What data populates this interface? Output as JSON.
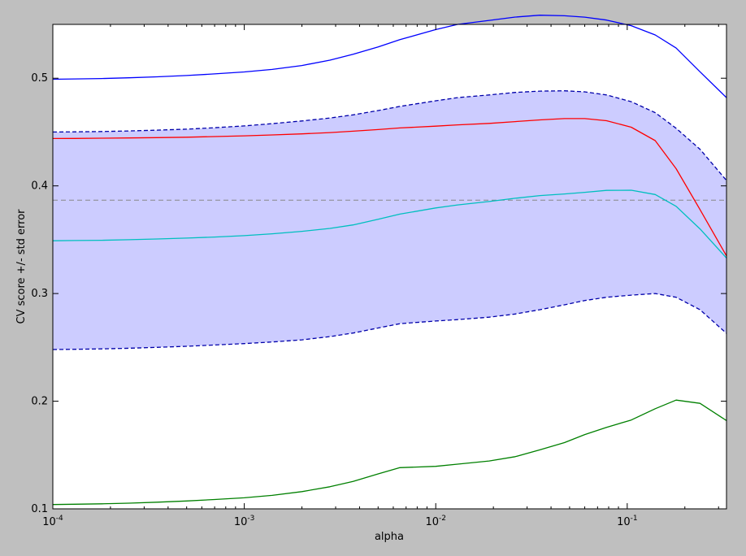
{
  "chart_data": {
    "type": "line",
    "title": "",
    "xlabel": "alpha",
    "ylabel": "CV score +/- std error",
    "xscale": "log",
    "xlim": [
      0.0001,
      0.33
    ],
    "ylim": [
      0.1,
      0.55
    ],
    "grid": false,
    "yticks": [
      {
        "value": 0.1,
        "label": "0.1"
      },
      {
        "value": 0.2,
        "label": "0.2"
      },
      {
        "value": 0.3,
        "label": "0.3"
      },
      {
        "value": 0.4,
        "label": "0.4"
      },
      {
        "value": 0.5,
        "label": "0.5"
      }
    ],
    "xticks": [
      {
        "value": 0.0001,
        "base": "10",
        "exp": "-4"
      },
      {
        "value": 0.001,
        "base": "10",
        "exp": "-3"
      },
      {
        "value": 0.01,
        "base": "10",
        "exp": "-2"
      },
      {
        "value": 0.1,
        "base": "10",
        "exp": "-1"
      }
    ],
    "alphas": [
      0.0001,
      0.00013,
      0.00018,
      0.00025,
      0.00035,
      0.0005,
      0.0007,
      0.001,
      0.0014,
      0.002,
      0.0028,
      0.0037,
      0.005,
      0.0065,
      0.01,
      0.013,
      0.019,
      0.026,
      0.035,
      0.047,
      0.06,
      0.078,
      0.105,
      0.14,
      0.18,
      0.24,
      0.33
    ],
    "series": [
      {
        "role": "fold-max",
        "color": "#0000ff",
        "style": "solid",
        "values": [
          0.499,
          0.4993,
          0.4997,
          0.5004,
          0.5013,
          0.5025,
          0.504,
          0.5058,
          0.5082,
          0.5118,
          0.5168,
          0.5222,
          0.529,
          0.5358,
          0.5452,
          0.55,
          0.5537,
          0.5568,
          0.5585,
          0.558,
          0.5567,
          0.554,
          0.5488,
          0.5402,
          0.528,
          0.506,
          0.482
        ]
      },
      {
        "role": "mean-plus-std",
        "color": "#0000aa",
        "style": "dashed",
        "values": [
          0.45,
          0.4502,
          0.4505,
          0.451,
          0.4518,
          0.4527,
          0.454,
          0.4557,
          0.4578,
          0.4603,
          0.463,
          0.466,
          0.47,
          0.4738,
          0.479,
          0.482,
          0.4845,
          0.4868,
          0.488,
          0.4883,
          0.4873,
          0.4845,
          0.4782,
          0.468,
          0.4535,
          0.434,
          0.405
        ]
      },
      {
        "role": "mean",
        "color": "#ff0000",
        "style": "solid",
        "values": [
          0.444,
          0.4441,
          0.4443,
          0.4445,
          0.4448,
          0.4452,
          0.4458,
          0.4465,
          0.4473,
          0.4483,
          0.4495,
          0.4508,
          0.4523,
          0.4538,
          0.4555,
          0.4567,
          0.458,
          0.4597,
          0.4613,
          0.4625,
          0.4625,
          0.4605,
          0.4545,
          0.442,
          0.416,
          0.378,
          0.335
        ]
      },
      {
        "role": "mean-minus-std",
        "color": "#0000aa",
        "style": "dashed",
        "values": [
          0.248,
          0.2482,
          0.2486,
          0.2492,
          0.25,
          0.251,
          0.2522,
          0.2535,
          0.255,
          0.257,
          0.26,
          0.2633,
          0.268,
          0.272,
          0.2745,
          0.2758,
          0.278,
          0.281,
          0.285,
          0.2895,
          0.2935,
          0.2965,
          0.2985,
          0.3,
          0.2965,
          0.285,
          0.263
        ]
      },
      {
        "role": "fold-mid",
        "color": "#00bfbf",
        "style": "solid",
        "values": [
          0.349,
          0.3492,
          0.3495,
          0.35,
          0.3507,
          0.3515,
          0.3525,
          0.3538,
          0.3555,
          0.3578,
          0.3605,
          0.3637,
          0.369,
          0.3738,
          0.3795,
          0.3823,
          0.3855,
          0.3885,
          0.391,
          0.3925,
          0.394,
          0.3958,
          0.396,
          0.392,
          0.381,
          0.36,
          0.333
        ]
      },
      {
        "role": "fold-min",
        "color": "#008000",
        "style": "solid",
        "values": [
          0.104,
          0.1043,
          0.1047,
          0.1053,
          0.1062,
          0.1073,
          0.1087,
          0.1103,
          0.1125,
          0.116,
          0.1205,
          0.1255,
          0.1325,
          0.1383,
          0.1395,
          0.1415,
          0.1445,
          0.1485,
          0.1548,
          0.1615,
          0.169,
          0.1757,
          0.1825,
          0.193,
          0.201,
          0.198,
          0.182
        ]
      }
    ],
    "band": {
      "upper": "mean-plus-std",
      "lower": "mean-minus-std",
      "color": "#0000ff",
      "opacity": 0.2
    },
    "hline": {
      "y": 0.3867,
      "color": "#888888",
      "style": "dashed"
    }
  }
}
